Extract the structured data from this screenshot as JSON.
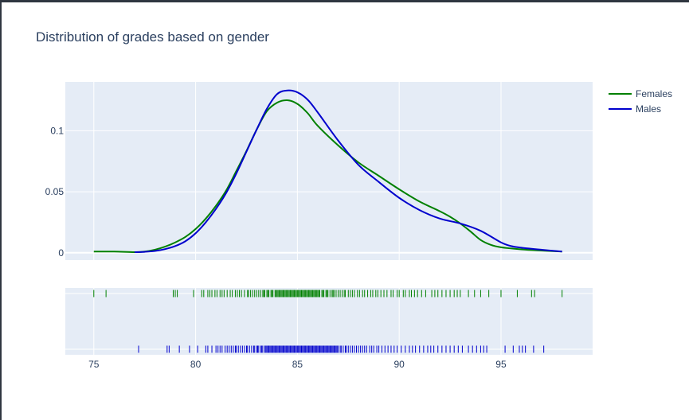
{
  "chart_data": {
    "type": "line",
    "title": "Distribution of grades based on gender",
    "xlabel": "",
    "ylabel": "",
    "xlim": [
      73.6,
      99.5
    ],
    "ylim": [
      -0.006,
      0.14
    ],
    "grid": true,
    "legend_position": "top-right",
    "x_ticks": [
      {
        "value": 75,
        "label": "75"
      },
      {
        "value": 80,
        "label": "80"
      },
      {
        "value": 85,
        "label": "85"
      },
      {
        "value": 90,
        "label": "90"
      },
      {
        "value": 95,
        "label": "95"
      }
    ],
    "y_ticks": [
      {
        "value": 0,
        "label": "0"
      },
      {
        "value": 0.05,
        "label": "0.05"
      },
      {
        "value": 0.1,
        "label": "0.1"
      }
    ],
    "series": [
      {
        "name": "Females",
        "color": "#008000",
        "x": [
          75,
          76,
          77,
          77.5,
          78,
          78.5,
          79,
          79.5,
          80,
          80.5,
          81,
          81.5,
          82,
          82.5,
          83,
          83.5,
          84,
          84.5,
          85,
          85.5,
          86,
          87,
          88,
          89,
          90,
          91,
          92,
          92.5,
          93,
          93.5,
          94,
          94.5,
          95,
          96,
          97,
          98
        ],
        "y": [
          0.001,
          0.001,
          0.0005,
          0.001,
          0.0025,
          0.005,
          0.0085,
          0.013,
          0.0195,
          0.028,
          0.0385,
          0.051,
          0.067,
          0.0835,
          0.101,
          0.116,
          0.123,
          0.125,
          0.122,
          0.1145,
          0.104,
          0.088,
          0.074,
          0.063,
          0.052,
          0.042,
          0.034,
          0.0295,
          0.024,
          0.0175,
          0.0105,
          0.0065,
          0.0045,
          0.0028,
          0.0018,
          0.001
        ]
      },
      {
        "name": "Males",
        "color": "#0000cd",
        "x": [
          77,
          77.5,
          78,
          78.5,
          79,
          79.5,
          80,
          80.5,
          81,
          81.5,
          82,
          82.5,
          83,
          83.5,
          84,
          84.5,
          85,
          85.5,
          86,
          87,
          88,
          89,
          90,
          91,
          92,
          93,
          94,
          95,
          95.5,
          96,
          97,
          98
        ],
        "y": [
          0.0005,
          0.0008,
          0.0015,
          0.003,
          0.0055,
          0.0095,
          0.016,
          0.025,
          0.036,
          0.049,
          0.065,
          0.083,
          0.101,
          0.118,
          0.13,
          0.133,
          0.1315,
          0.1255,
          0.115,
          0.092,
          0.072,
          0.058,
          0.045,
          0.035,
          0.028,
          0.024,
          0.018,
          0.0085,
          0.0055,
          0.0042,
          0.0025,
          0.001
        ]
      }
    ],
    "rug": {
      "females": [
        75,
        75.6,
        78.9,
        79,
        79.1,
        79.9,
        80.3,
        80.4,
        80.6,
        80.7,
        80.8,
        80.95,
        81.05,
        81.2,
        81.3,
        81.4,
        81.55,
        81.7,
        81.8,
        81.95,
        82.05,
        82.15,
        82.25,
        82.4,
        82.55,
        82.6,
        82.7,
        82.8,
        82.9,
        83.0,
        83.1,
        83.2,
        83.3,
        83.35,
        83.4,
        83.5,
        83.55,
        83.6,
        83.7,
        83.75,
        83.8,
        83.9,
        83.95,
        84.0,
        84.05,
        84.1,
        84.15,
        84.2,
        84.25,
        84.3,
        84.35,
        84.4,
        84.45,
        84.5,
        84.55,
        84.6,
        84.65,
        84.7,
        84.75,
        84.8,
        84.85,
        84.9,
        84.95,
        85.0,
        85.05,
        85.1,
        85.15,
        85.2,
        85.25,
        85.3,
        85.35,
        85.4,
        85.45,
        85.5,
        85.55,
        85.6,
        85.65,
        85.7,
        85.75,
        85.8,
        85.85,
        85.9,
        85.95,
        86.0,
        86.05,
        86.1,
        86.2,
        86.25,
        86.3,
        86.4,
        86.45,
        86.5,
        86.6,
        86.7,
        86.75,
        86.8,
        86.9,
        87.0,
        87.1,
        87.2,
        87.3,
        87.35,
        87.5,
        87.6,
        87.7,
        87.8,
        87.95,
        88.05,
        88.2,
        88.3,
        88.45,
        88.6,
        88.7,
        88.85,
        88.95,
        89.1,
        89.25,
        89.4,
        89.6,
        89.7,
        89.9,
        90.0,
        90.2,
        90.3,
        90.5,
        90.6,
        90.75,
        90.9,
        91.1,
        91.3,
        91.6,
        91.75,
        91.9,
        92.1,
        92.3,
        92.5,
        92.7,
        92.85,
        93.0,
        93.4,
        93.7,
        94.0,
        94.4,
        95.0,
        95.8,
        96.5,
        96.65,
        98
      ],
      "males": [
        77.2,
        78.6,
        78.7,
        79.2,
        79.7,
        80.1,
        80.5,
        80.6,
        80.8,
        81.0,
        81.1,
        81.2,
        81.3,
        81.45,
        81.55,
        81.65,
        81.75,
        81.85,
        81.95,
        82.0,
        82.1,
        82.2,
        82.3,
        82.4,
        82.5,
        82.55,
        82.65,
        82.75,
        82.85,
        82.9,
        83.0,
        83.05,
        83.1,
        83.2,
        83.25,
        83.3,
        83.4,
        83.45,
        83.5,
        83.55,
        83.6,
        83.65,
        83.7,
        83.75,
        83.8,
        83.85,
        83.9,
        83.95,
        84.0,
        84.05,
        84.1,
        84.15,
        84.2,
        84.25,
        84.3,
        84.35,
        84.4,
        84.45,
        84.5,
        84.55,
        84.6,
        84.65,
        84.7,
        84.75,
        84.8,
        84.85,
        84.9,
        84.95,
        85.0,
        85.05,
        85.1,
        85.15,
        85.2,
        85.25,
        85.3,
        85.35,
        85.4,
        85.45,
        85.5,
        85.55,
        85.6,
        85.65,
        85.7,
        85.75,
        85.8,
        85.85,
        85.9,
        85.95,
        86.0,
        86.05,
        86.1,
        86.15,
        86.2,
        86.25,
        86.3,
        86.35,
        86.4,
        86.45,
        86.5,
        86.55,
        86.6,
        86.65,
        86.7,
        86.75,
        86.8,
        86.85,
        86.9,
        86.95,
        87.0,
        87.1,
        87.15,
        87.25,
        87.35,
        87.4,
        87.5,
        87.6,
        87.7,
        87.8,
        87.9,
        88.0,
        88.1,
        88.2,
        88.3,
        88.4,
        88.55,
        88.65,
        88.75,
        88.9,
        89.0,
        89.15,
        89.3,
        89.45,
        89.6,
        89.75,
        89.9,
        90.1,
        90.3,
        90.5,
        90.65,
        90.8,
        91.0,
        91.2,
        91.4,
        91.55,
        91.7,
        91.9,
        92.1,
        92.3,
        92.5,
        92.7,
        92.9,
        93.1,
        93.4,
        93.6,
        93.8,
        94.0,
        94.15,
        94.3,
        95.2,
        95.6,
        95.9,
        96.05,
        96.2,
        96.6,
        97.1
      ]
    }
  }
}
